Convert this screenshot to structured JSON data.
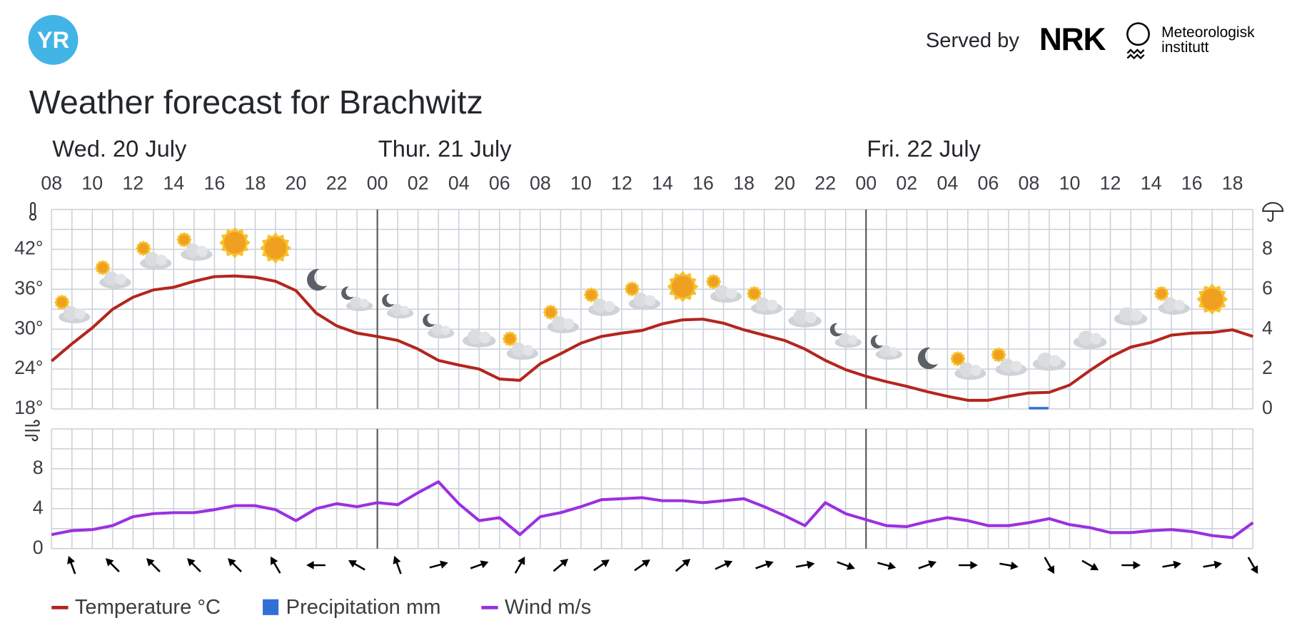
{
  "header": {
    "logo": "YR",
    "served_by": "Served by",
    "partner": "NRK",
    "institute": [
      "Meteorologisk",
      "institutt"
    ]
  },
  "title": "Weather forecast for Brachwitz",
  "chart_data": [
    {
      "type": "line",
      "days": [
        "Wed. 20 July",
        "Thur. 21 July",
        "Fri. 22 July"
      ],
      "categories": [
        "08",
        null,
        "10",
        null,
        "12",
        null,
        "14",
        null,
        "16",
        null,
        "18",
        null,
        "20",
        null,
        "22",
        null,
        "00",
        null,
        "02",
        null,
        "04",
        null,
        "06",
        null,
        "08",
        null,
        "10",
        null,
        "12",
        null,
        "14",
        null,
        "16",
        null,
        "18",
        null,
        "20",
        null,
        "22",
        null,
        "00",
        null,
        "02",
        null,
        "04",
        null,
        "06",
        null,
        "08",
        null,
        "10",
        null,
        "12",
        null,
        "14",
        null,
        "16",
        null,
        "18",
        null
      ],
      "series": [
        {
          "name": "Temperature °C",
          "color": "#b3261e",
          "values": [
            25.2,
            27.8,
            30.2,
            33,
            34.8,
            35.9,
            36.3,
            37.2,
            37.9,
            38,
            37.8,
            37.2,
            35.8,
            32.4,
            30.5,
            29.4,
            28.9,
            28.3,
            27,
            25.3,
            24.6,
            24,
            22.5,
            22.3,
            24.8,
            26.3,
            27.9,
            28.9,
            29.4,
            29.8,
            30.8,
            31.4,
            31.5,
            30.9,
            29.9,
            29.1,
            28.3,
            27,
            25.3,
            23.9,
            22.9,
            22.1,
            21.4,
            20.6,
            19.9,
            19.3,
            19.3,
            19.9,
            20.4,
            20.5,
            21.6,
            23.8,
            25.8,
            27.3,
            28,
            29.1,
            29.4,
            29.5,
            29.9,
            28.9
          ]
        },
        {
          "name": "Precipitation mm",
          "color": "#2f6fd6",
          "type": "bar",
          "axis": "y2",
          "values": [
            0,
            0,
            0,
            0,
            0,
            0,
            0,
            0,
            0,
            0,
            0,
            0,
            0,
            0,
            0,
            0,
            0,
            0,
            0,
            0,
            0,
            0,
            0,
            0,
            0,
            0,
            0,
            0,
            0,
            0,
            0,
            0,
            0,
            0,
            0,
            0,
            0,
            0,
            0,
            0,
            0,
            0,
            0,
            0,
            0,
            0,
            0,
            0,
            0.1,
            0,
            0,
            0,
            0,
            0,
            0,
            0,
            0,
            0,
            0,
            0
          ]
        }
      ],
      "ylim": [
        18,
        48
      ],
      "yticks": [
        {
          "value": 18,
          "label": "18°"
        },
        {
          "value": 24,
          "label": "24°"
        },
        {
          "value": 30,
          "label": "30°"
        },
        {
          "value": 36,
          "label": "36°"
        },
        {
          "value": 42,
          "label": "42°"
        }
      ],
      "y2lim": [
        0,
        10
      ],
      "y2ticks": [
        0,
        2,
        4,
        6,
        8
      ],
      "grid": true
    },
    {
      "type": "line",
      "series": [
        {
          "name": "Wind m/s",
          "color": "#9b30e0",
          "values": [
            1.4,
            1.8,
            1.9,
            2.3,
            3.2,
            3.5,
            3.6,
            3.6,
            3.9,
            4.3,
            4.3,
            3.9,
            2.8,
            4,
            4.5,
            4.2,
            4.6,
            4.4,
            5.6,
            6.7,
            4.5,
            2.8,
            3.1,
            1.4,
            3.2,
            3.6,
            4.2,
            4.9,
            5,
            5.1,
            4.8,
            4.8,
            4.6,
            4.8,
            5,
            4.2,
            3.3,
            2.3,
            4.6,
            3.5,
            2.9,
            2.3,
            2.2,
            2.7,
            3.1,
            2.8,
            2.3,
            2.3,
            2.6,
            3,
            2.4,
            2.1,
            1.6,
            1.6,
            1.8,
            1.9,
            1.7,
            1.3,
            1.1,
            2.6
          ]
        }
      ],
      "wind_direction": [
        null,
        340,
        null,
        315,
        null,
        315,
        null,
        315,
        null,
        315,
        null,
        330,
        null,
        270,
        null,
        300,
        null,
        340,
        null,
        75,
        null,
        70,
        null,
        30,
        null,
        50,
        null,
        55,
        null,
        55,
        null,
        50,
        null,
        65,
        null,
        70,
        null,
        80,
        null,
        110,
        null,
        105,
        null,
        70,
        null,
        90,
        null,
        100,
        null,
        150,
        null,
        120,
        null,
        90,
        null,
        80,
        null,
        80,
        null,
        150
      ],
      "ylim": [
        0,
        12
      ],
      "yticks": [
        0,
        4,
        8
      ],
      "grid": true
    }
  ]
}
